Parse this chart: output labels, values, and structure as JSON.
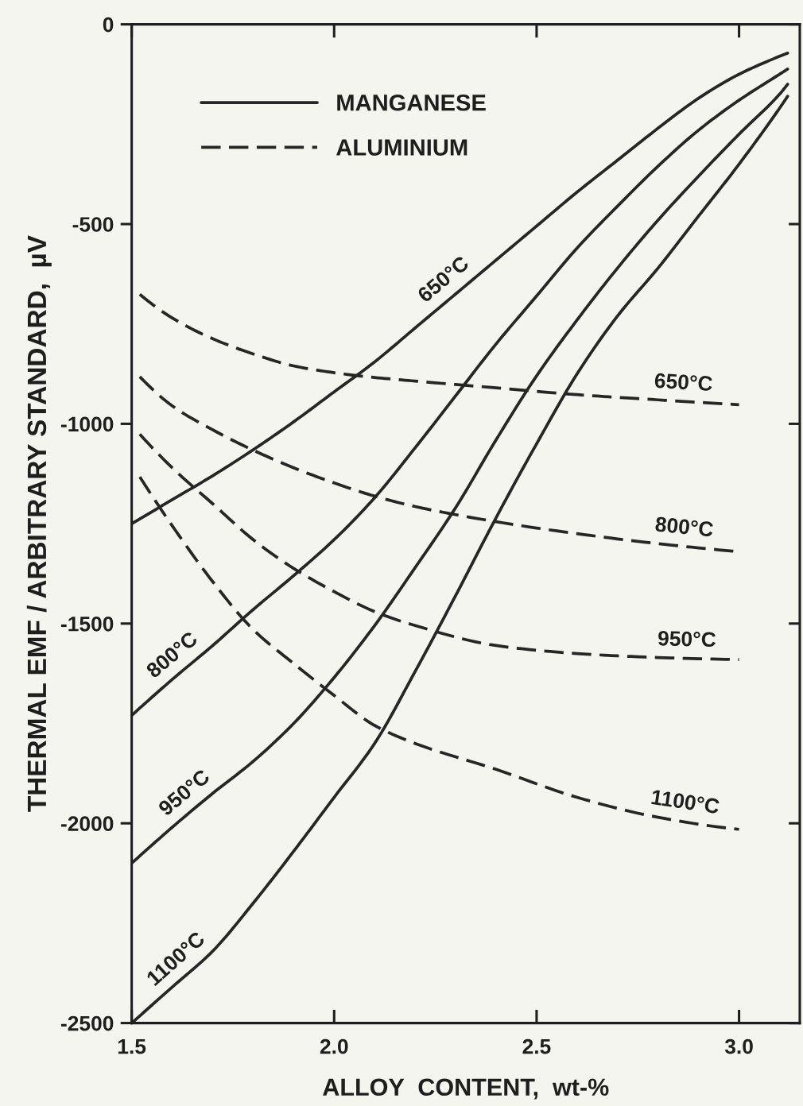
{
  "chart_data": {
    "type": "line",
    "xlabel": "ALLOY  CONTENT,  wt-%",
    "ylabel": "THERMAL EMF / ARBITRARY STANDARD,  µV",
    "xlim": [
      1.5,
      3.15
    ],
    "xticks": [
      1.5,
      {
        "value": 2,
        "label": "2.0"
      },
      2.5,
      {
        "value": 3,
        "label": "3.0"
      }
    ],
    "ylim": [
      -2500,
      0
    ],
    "yticks": [
      -2500,
      -2000,
      -1500,
      -1000,
      -500,
      0
    ],
    "legend": "top left",
    "series": [
      {
        "name": "MANGANESE",
        "color": "#262626",
        "line_style": "solid",
        "x": [
          1.5,
          1.6,
          1.7,
          1.8,
          1.9,
          2.0,
          2.1,
          2.2,
          2.3,
          2.4,
          2.5,
          2.6,
          2.7,
          2.8,
          2.9,
          3.0,
          3.1,
          3.12
        ],
        "values": [
          -1250,
          -1190,
          -1130,
          -1065,
          -995,
          -920,
          -845,
          -760,
          -675,
          -590,
          -505,
          -420,
          -340,
          -260,
          -185,
          -125,
          -80,
          -72
        ]
      },
      {
        "color": "#262626",
        "line_style": "solid",
        "x": [
          1.5,
          1.6,
          1.7,
          1.8,
          1.9,
          2.0,
          2.1,
          2.2,
          2.3,
          2.4,
          2.5,
          2.6,
          2.7,
          2.8,
          2.9,
          3.0,
          3.1,
          3.12
        ],
        "values": [
          -1730,
          -1640,
          -1555,
          -1465,
          -1380,
          -1290,
          -1185,
          -1060,
          -930,
          -800,
          -680,
          -560,
          -455,
          -355,
          -265,
          -190,
          -125,
          -112
        ]
      },
      {
        "color": "#262626",
        "line_style": "solid",
        "x": [
          1.5,
          1.6,
          1.7,
          1.8,
          1.9,
          2.0,
          2.1,
          2.2,
          2.3,
          2.4,
          2.5,
          2.6,
          2.7,
          2.8,
          2.9,
          3.0,
          3.1,
          3.12
        ],
        "values": [
          -2100,
          -2010,
          -1925,
          -1845,
          -1750,
          -1635,
          -1505,
          -1360,
          -1210,
          -1040,
          -880,
          -740,
          -610,
          -490,
          -380,
          -275,
          -175,
          -150
        ]
      },
      {
        "color": "#262626",
        "line_style": "solid",
        "x": [
          1.5,
          1.6,
          1.7,
          1.8,
          1.9,
          2.0,
          2.1,
          2.2,
          2.3,
          2.4,
          2.5,
          2.6,
          2.7,
          2.8,
          2.9,
          3.0,
          3.1,
          3.12
        ],
        "values": [
          -2500,
          -2410,
          -2320,
          -2200,
          -2070,
          -1935,
          -1800,
          -1620,
          -1430,
          -1235,
          -1050,
          -875,
          -730,
          -610,
          -480,
          -350,
          -210,
          -180
        ]
      },
      {
        "name": "ALUMINIUM",
        "color": "#262626",
        "line_style": "dashed",
        "x": [
          1.52,
          1.6,
          1.7,
          1.8,
          1.9,
          2.0,
          2.1,
          2.2,
          2.4,
          2.6,
          2.8,
          3.0
        ],
        "values": [
          -676,
          -735,
          -787,
          -825,
          -855,
          -872,
          -884,
          -893,
          -910,
          -927,
          -940,
          -952
        ]
      },
      {
        "color": "#262626",
        "line_style": "dashed",
        "x": [
          1.52,
          1.6,
          1.7,
          1.8,
          1.9,
          2.0,
          2.1,
          2.2,
          2.4,
          2.6,
          2.8,
          3.0
        ],
        "values": [
          -882,
          -955,
          -1015,
          -1066,
          -1110,
          -1148,
          -1181,
          -1207,
          -1245,
          -1275,
          -1300,
          -1320
        ]
      },
      {
        "color": "#262626",
        "line_style": "dashed",
        "x": [
          1.52,
          1.6,
          1.7,
          1.8,
          1.9,
          2.0,
          2.1,
          2.2,
          2.4,
          2.6,
          2.8,
          3.0
        ],
        "values": [
          -1026,
          -1110,
          -1200,
          -1290,
          -1362,
          -1420,
          -1470,
          -1505,
          -1555,
          -1575,
          -1585,
          -1590
        ]
      },
      {
        "color": "#262626",
        "line_style": "dashed",
        "x": [
          1.52,
          1.6,
          1.7,
          1.8,
          1.9,
          2.0,
          2.1,
          2.2,
          2.4,
          2.6,
          2.8,
          3.0
        ],
        "values": [
          -1133,
          -1255,
          -1395,
          -1515,
          -1600,
          -1680,
          -1755,
          -1800,
          -1865,
          -1935,
          -1985,
          -2015
        ]
      }
    ],
    "annotations": [
      {
        "text": "650°C",
        "x": 2.3,
        "y": -675
      },
      {
        "text": "800°C",
        "x": 1.63,
        "y": -1615
      },
      {
        "text": "950°C",
        "x": 1.66,
        "y": -1960
      },
      {
        "text": "1100°C",
        "x": 1.64,
        "y": -2375
      },
      {
        "text": "650°C",
        "x": 2.86,
        "y": -944
      },
      {
        "text": "800°C",
        "x": 2.86,
        "y": -1306
      },
      {
        "text": "950°C",
        "x": 2.87,
        "y": -1587
      },
      {
        "text": "1100°C",
        "x": 2.86,
        "y": -1994
      }
    ]
  }
}
